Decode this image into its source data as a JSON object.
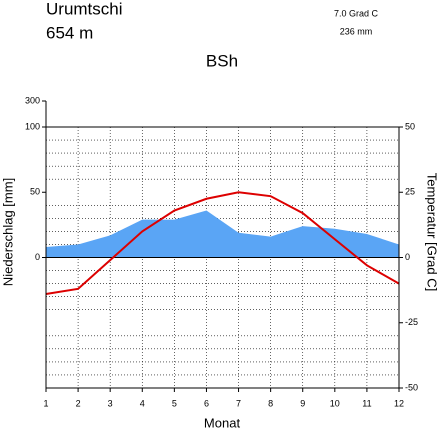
{
  "chart_data": {
    "type": "climate",
    "title": "Urumtschi",
    "elevation": "654  m",
    "mean_temperature": "7.0 Grad C",
    "annual_precipitation": "236 mm",
    "climate_class": "BSh",
    "xlabel": "Monat",
    "ylabel": "Niederschlag [mm]",
    "y2label": "Temperatur [Grad C]",
    "x": [
      1,
      2,
      3,
      4,
      5,
      6,
      7,
      8,
      9,
      10,
      11,
      12
    ],
    "xlim": [
      1,
      12
    ],
    "xticks": [
      1,
      2,
      3,
      4,
      5,
      6,
      7,
      8,
      9,
      10,
      11,
      12
    ],
    "ylim": [
      -100,
      300
    ],
    "yticks": [
      0,
      50,
      100,
      300
    ],
    "y2lim": [
      -50,
      50
    ],
    "y2ticks": [
      -50,
      -25,
      0,
      25,
      50
    ],
    "y2minorticks": [
      -45,
      -40,
      -35,
      -30,
      -20,
      -15,
      -10,
      -5,
      5,
      10,
      15,
      20,
      30,
      35,
      40,
      45
    ],
    "grid": true,
    "series": [
      {
        "name": "Niederschlag",
        "color": "#5aa5f5",
        "values": [
          8,
          10,
          17,
          29,
          29,
          36,
          19,
          16,
          24,
          22,
          18,
          10
        ]
      },
      {
        "name": "Temperatur",
        "color": "#dd0000",
        "axis": "y2",
        "values": [
          -14,
          -12,
          -1,
          10,
          18,
          22.5,
          25,
          23.5,
          17,
          7,
          -3,
          -10
        ]
      }
    ]
  }
}
